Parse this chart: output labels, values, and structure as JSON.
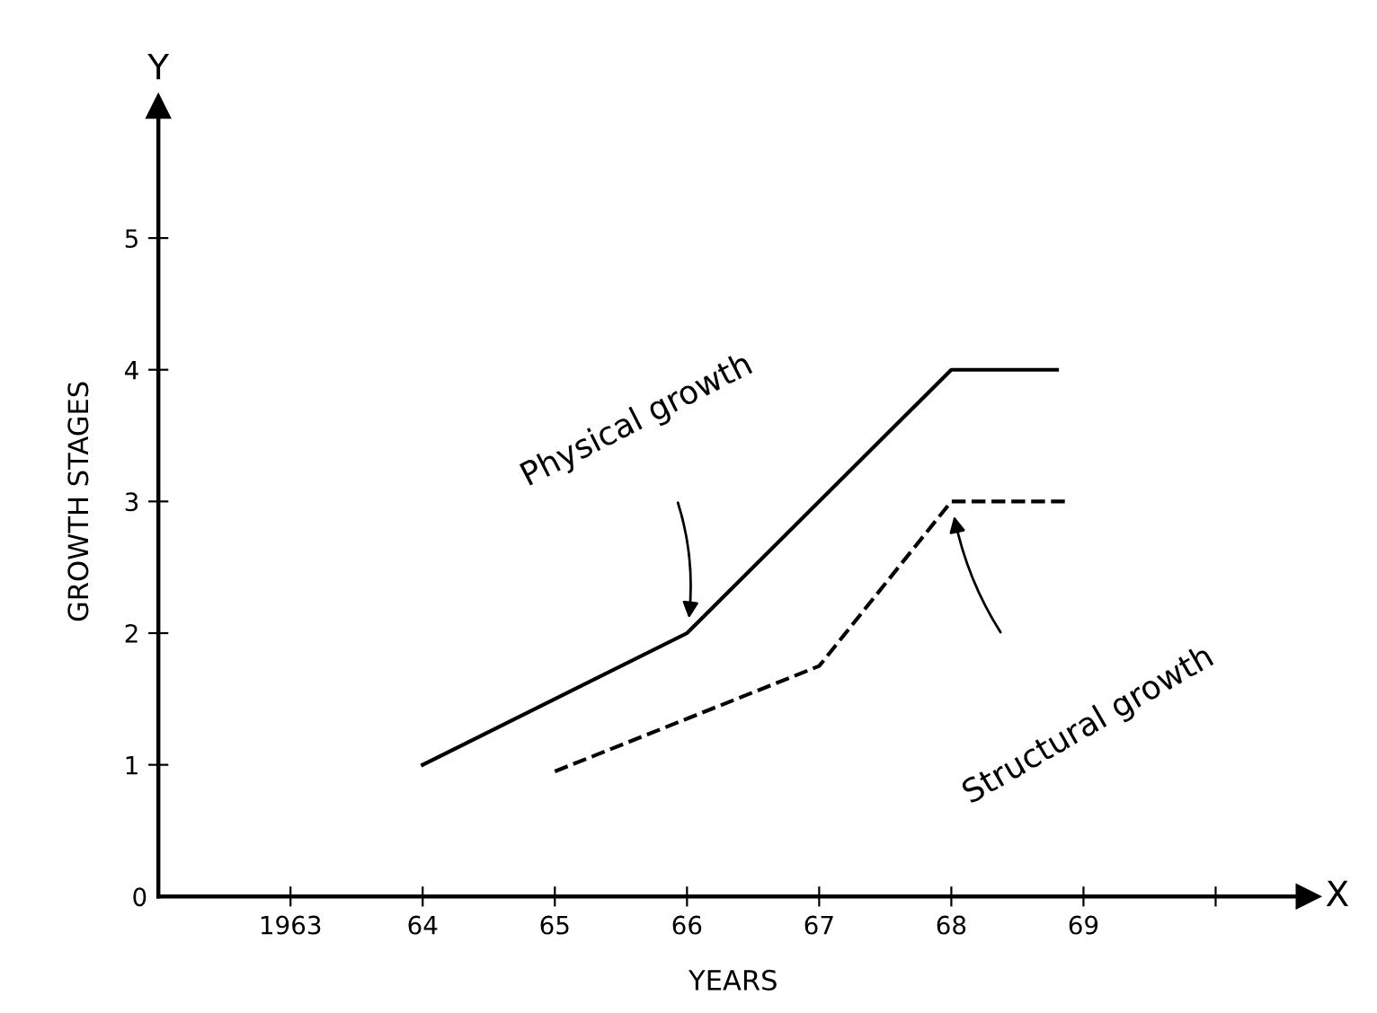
{
  "chart_data": {
    "type": "line",
    "xlabel": "YEARS",
    "ylabel": "GROWTH STAGES",
    "series": [
      {
        "name": "Physical growth",
        "color": "#000000",
        "line_style": "solid",
        "x": [
          1964,
          1966,
          1968,
          1968.8
        ],
        "values": [
          1,
          2,
          4,
          4
        ]
      },
      {
        "name": "Structural growth",
        "color": "#000000",
        "line_style": "dashed",
        "x": [
          1965,
          1967,
          1968,
          1968.9
        ],
        "values": [
          0.95,
          1.75,
          3,
          3
        ]
      }
    ],
    "annotations": [
      "X",
      "Y"
    ],
    "xlim": [
      1962,
      1970.7
    ],
    "ylim": [
      0,
      6
    ],
    "xticks": [
      1963,
      {
        "value": 1964,
        "label": "64"
      },
      {
        "value": 1965,
        "label": "65"
      },
      {
        "value": 1966,
        "label": "66"
      },
      {
        "value": 1967,
        "label": "67"
      },
      {
        "value": 1968,
        "label": "68"
      },
      {
        "value": 1969,
        "label": "69"
      },
      {
        "value": 1970,
        "label": null
      }
    ],
    "yticks": [
      0,
      1,
      2,
      3,
      4,
      5
    ],
    "grid": false,
    "legend": false,
    "marker": "none"
  }
}
